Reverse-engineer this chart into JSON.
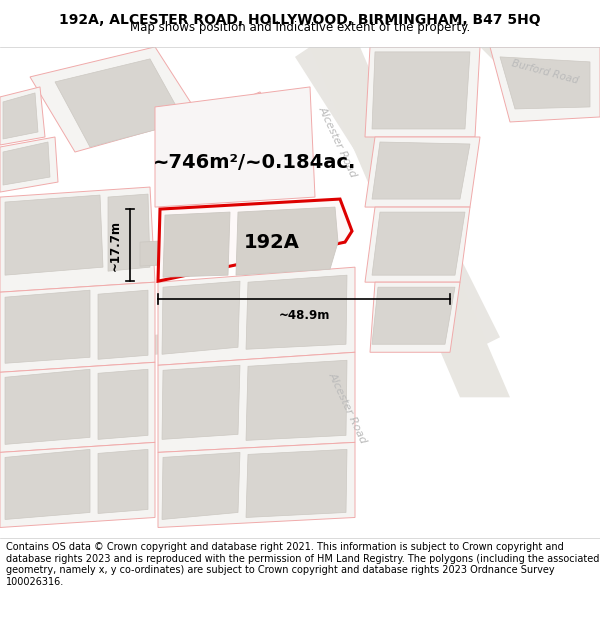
{
  "title": "192A, ALCESTER ROAD, HOLLYWOOD, BIRMINGHAM, B47 5HQ",
  "subtitle": "Map shows position and indicative extent of the property.",
  "footer": "Contains OS data © Crown copyright and database right 2021. This information is subject to Crown copyright and database rights 2023 and is reproduced with the permission of HM Land Registry. The polygons (including the associated geometry, namely x, y co-ordinates) are subject to Crown copyright and database rights 2023 Ordnance Survey 100026316.",
  "label": "192A",
  "area_label": "~746m²/~0.184ac.",
  "width_label": "~48.9m",
  "height_label": "~17.7m",
  "map_bg": "#ffffff",
  "highlight_color": "#dd0000",
  "road_color": "#e8e4e0",
  "parcel_edge_color": "#f0aaaa",
  "building_fill": "#dddad5",
  "building_edge": "#ccc8c2",
  "road_label_color": "#bbbbbb",
  "title_fontsize": 10,
  "subtitle_fontsize": 8.5,
  "footer_fontsize": 7.0
}
